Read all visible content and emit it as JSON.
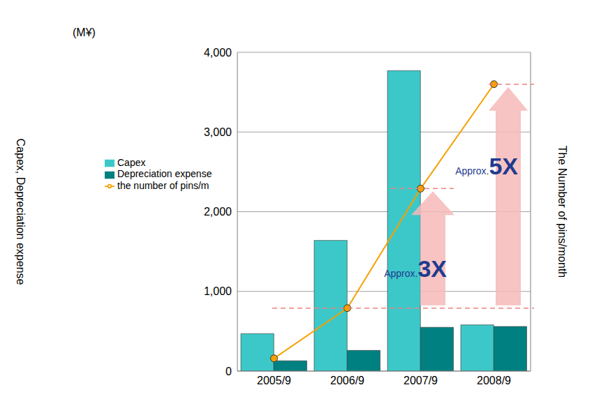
{
  "chart_data": {
    "type": "bar",
    "y_unit": "(M¥)",
    "y_label": "Capex, Depreciation expense",
    "y2_label": "The Number of pins/month",
    "categories": [
      "2005/9",
      "2006/9",
      "2007/9",
      "2008/9"
    ],
    "series": [
      {
        "name": "Capex",
        "type": "bar",
        "color": "#3cc8c8",
        "values": [
          470,
          1640,
          3770,
          580
        ]
      },
      {
        "name": "Depreciation expense",
        "type": "bar",
        "color": "#008080",
        "values": [
          130,
          260,
          550,
          560
        ]
      },
      {
        "name": "the number of pins/m",
        "type": "line",
        "color": "#f5a000",
        "marker": "circle",
        "axis": "y2",
        "values": [
          160,
          790,
          2290,
          3600
        ]
      }
    ],
    "ylim": [
      0,
      4000
    ],
    "yticks": [
      0,
      {
        "value": 1000,
        "label": "1,000"
      },
      {
        "value": 2000,
        "label": "2,000"
      },
      {
        "value": 3000,
        "label": "3,000"
      },
      {
        "value": 4000,
        "label": "4,000"
      }
    ],
    "y2lim": [
      0,
      4000
    ],
    "y2ticks": [],
    "grid": true,
    "legend": "top-left",
    "annotations": [
      {
        "text": "Approx.",
        "emphasis": "3X"
      },
      {
        "text": "Approx.",
        "emphasis": "5X"
      }
    ]
  }
}
